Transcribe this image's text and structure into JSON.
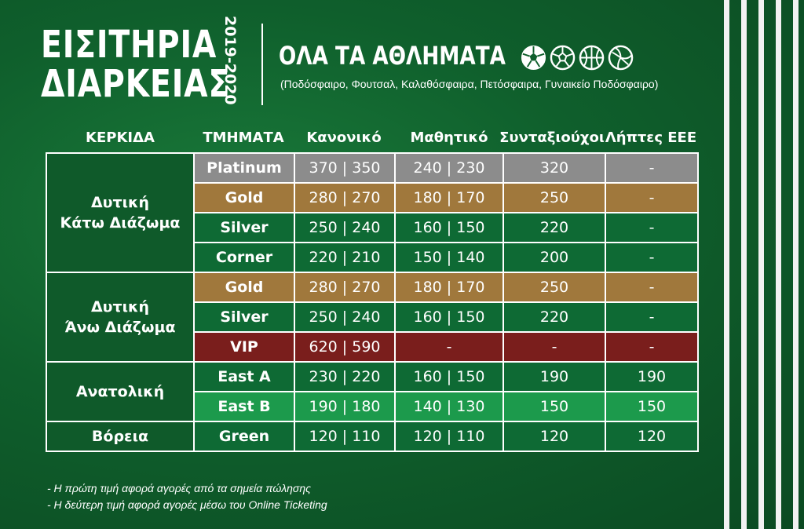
{
  "header": {
    "title_line1": "ΕΙΣΙΤΗΡΙΑ",
    "title_line2": "ΔΙΑΡΚΕΙΑΣ",
    "season": "2019-2020",
    "sports_title": "ΟΛΑ ΤΑ ΑΘΛΗΜΑΤΑ",
    "sports_list": "(Ποδόσφαιρο, Φουτσαλ, Καλαθόσφαιρα, Πετόσφαιρα, Γυναικείο Ποδόσφαιρο)",
    "sport_icons": [
      "soccer-ball-icon",
      "futsal-ball-icon",
      "basketball-icon",
      "volleyball-icon"
    ]
  },
  "columns": [
    "ΚΕΡΚΙΔΑ",
    "ΤΜΗΜΑΤΑ",
    "Κανονικό",
    "Μαθητικό",
    "Συνταξιούχοι",
    "Λήπτες ΕΕΕ"
  ],
  "sections": [
    {
      "name_line1": "Δυτική",
      "name_line2": "Κάτω Διάζωμα",
      "rows": [
        {
          "tier": "Platinum",
          "regular": "370 | 350",
          "student": "240 | 230",
          "pensioner": "320",
          "eee": "-",
          "style": "platinum"
        },
        {
          "tier": "Gold",
          "regular": "280 | 270",
          "student": "180 | 170",
          "pensioner": "250",
          "eee": "-",
          "style": "gold"
        },
        {
          "tier": "Silver",
          "regular": "250 | 240",
          "student": "160 | 150",
          "pensioner": "220",
          "eee": "-",
          "style": "silver"
        },
        {
          "tier": "Corner",
          "regular": "220 | 210",
          "student": "150 | 140",
          "pensioner": "200",
          "eee": "-",
          "style": "silver"
        }
      ]
    },
    {
      "name_line1": "Δυτική",
      "name_line2": "Άνω Διάζωμα",
      "rows": [
        {
          "tier": "Gold",
          "regular": "280 | 270",
          "student": "180 | 170",
          "pensioner": "250",
          "eee": "-",
          "style": "gold"
        },
        {
          "tier": "Silver",
          "regular": "250 | 240",
          "student": "160 | 150",
          "pensioner": "220",
          "eee": "-",
          "style": "silver"
        },
        {
          "tier": "VIP",
          "regular": "620 |  590",
          "student": "-",
          "pensioner": "-",
          "eee": "-",
          "style": "vip"
        }
      ]
    },
    {
      "name_line1": "Ανατολική",
      "name_line2": "",
      "rows": [
        {
          "tier": "East A",
          "regular": "230 | 220",
          "student": "160 | 150",
          "pensioner": "190",
          "eee": "190",
          "style": "eastA"
        },
        {
          "tier": "East B",
          "regular": "190 | 180",
          "student": "140 | 130",
          "pensioner": "150",
          "eee": "150",
          "style": "eastB"
        }
      ]
    },
    {
      "name_line1": "Βόρεια",
      "name_line2": "",
      "rows": [
        {
          "tier": "Green",
          "regular": "120 | 110",
          "student": "120 | 110",
          "pensioner": "120",
          "eee": "120",
          "style": "green"
        }
      ]
    }
  ],
  "notes": [
    "- Η πρώτη τιμή αφορά αγορές από τα σημεία πώλησης",
    "- Η δεύτερη τιμή αφορά αγορές μέσω του Online Ticketing"
  ],
  "colors": {
    "background": "#0f5f2c",
    "platinum": "#8c8c8c",
    "gold": "#a0783c",
    "silver": "#0e6a34",
    "vip": "#7a1e1c",
    "east_b": "#1c9a4c",
    "stripes": "#f2f2f2"
  }
}
